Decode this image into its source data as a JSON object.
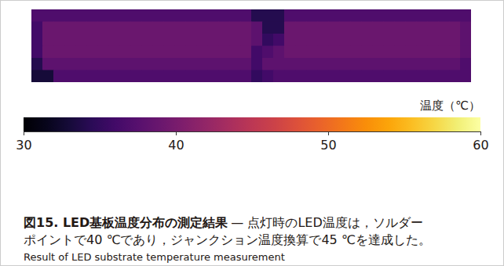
{
  "chart_data": {
    "type": "heatmap",
    "title": "図15. LED基板温度分布の測定結果",
    "caption": [
      "— 点灯時のLED温度は，ソルダー",
      "ポイントで40 ℃であり，ジャンクション温度換算で45 ℃を達成した。"
    ],
    "subtitle": "Result of LED substrate temperature measurement",
    "tick_labels": false,
    "cells": [
      [
        37,
        37,
        37,
        37,
        37,
        37,
        37,
        37,
        37,
        37,
        37,
        37,
        37,
        37,
        37,
        37,
        37,
        37,
        37,
        37,
        34,
        34,
        34,
        37,
        37,
        37,
        37,
        37,
        37,
        37,
        37,
        37,
        37,
        37,
        37,
        37,
        37,
        37,
        37,
        37
      ],
      [
        36,
        39,
        39,
        39,
        39,
        39,
        39,
        39,
        39,
        39,
        39,
        39,
        39,
        39,
        39,
        39,
        39,
        39,
        39,
        39,
        38,
        34,
        34,
        39,
        39,
        39,
        39,
        39,
        39,
        39,
        39,
        39,
        39,
        39,
        39,
        39,
        39,
        39,
        39,
        38
      ],
      [
        36,
        39,
        39,
        39,
        39,
        39,
        39,
        39,
        39,
        39,
        39,
        39,
        39,
        39,
        39,
        39,
        39,
        39,
        39,
        39,
        38,
        35,
        36,
        39,
        39,
        39,
        39,
        39,
        39,
        39,
        39,
        39,
        39,
        39,
        39,
        39,
        39,
        39,
        39,
        38
      ],
      [
        36,
        39,
        39,
        39,
        39,
        39,
        39,
        39,
        39,
        39,
        39,
        39,
        39,
        39,
        39,
        39,
        39,
        39,
        39,
        39,
        36,
        37,
        38,
        39,
        39,
        39,
        39,
        39,
        39,
        39,
        39,
        39,
        39,
        39,
        39,
        39,
        39,
        39,
        39,
        38
      ],
      [
        34,
        38,
        38,
        38,
        38,
        38,
        38,
        38,
        38,
        38,
        38,
        38,
        38,
        38,
        38,
        38,
        38,
        38,
        38,
        38,
        36,
        38,
        38,
        38,
        38,
        38,
        38,
        38,
        38,
        38,
        38,
        38,
        38,
        38,
        38,
        38,
        38,
        38,
        38,
        37
      ],
      [
        33,
        33,
        37,
        37,
        37,
        37,
        37,
        37,
        37,
        37,
        37,
        37,
        37,
        37,
        37,
        37,
        37,
        37,
        37,
        37,
        35,
        36,
        37,
        37,
        37,
        37,
        37,
        37,
        37,
        37,
        37,
        37,
        37,
        37,
        37,
        37,
        37,
        37,
        37,
        37
      ]
    ],
    "colorbar": {
      "label": "温度（℃）",
      "range": [
        30,
        60
      ],
      "ticks": [
        30,
        40,
        50,
        60
      ]
    }
  }
}
